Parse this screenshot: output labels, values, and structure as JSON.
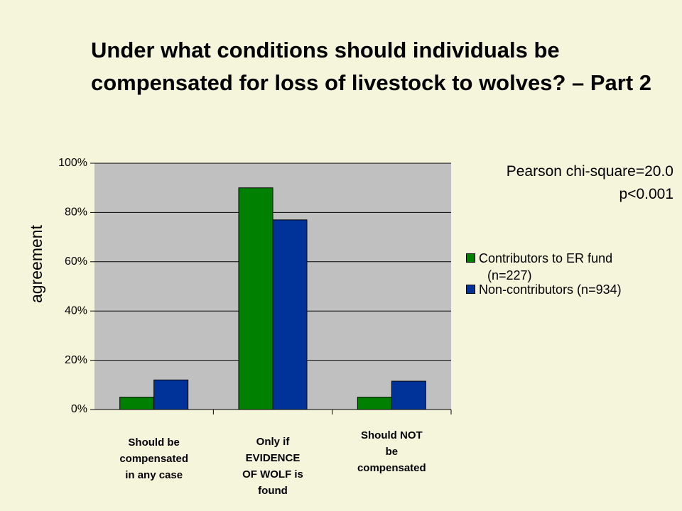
{
  "title": "Under what conditions should individuals be compensated for loss of livestock to wolves? – Part 2",
  "annotation": {
    "line1": "Pearson chi-square=20.0",
    "line2": "p<0.001"
  },
  "colors": {
    "background": "#f5f5dc",
    "plot_area": "#c0c0c0",
    "contributors": "#008000",
    "non_contributors": "#003399"
  },
  "chart_data": {
    "type": "bar",
    "ylabel": "agreement",
    "ylim": [
      0,
      100
    ],
    "yticks": [
      "0%",
      "20%",
      "40%",
      "60%",
      "80%",
      "100%"
    ],
    "categories": [
      [
        "Should be",
        "compensated",
        "in any case"
      ],
      [
        "Only if",
        "EVIDENCE",
        "OF WOLF is",
        "found"
      ],
      [
        "Should NOT",
        "be",
        "compensated"
      ]
    ],
    "series": [
      {
        "name": "Contributors to ER fund (n=227)",
        "legend_lines": [
          "Contributors to ER fund",
          "(n=227)"
        ],
        "color": "#008000",
        "values": [
          5,
          90,
          5
        ]
      },
      {
        "name": "Non-contributors (n=934)",
        "legend_lines": [
          "Non-contributors (n=934)"
        ],
        "color": "#003399",
        "values": [
          12,
          77,
          11.5
        ]
      }
    ],
    "grid": true,
    "legend_position": "right"
  }
}
